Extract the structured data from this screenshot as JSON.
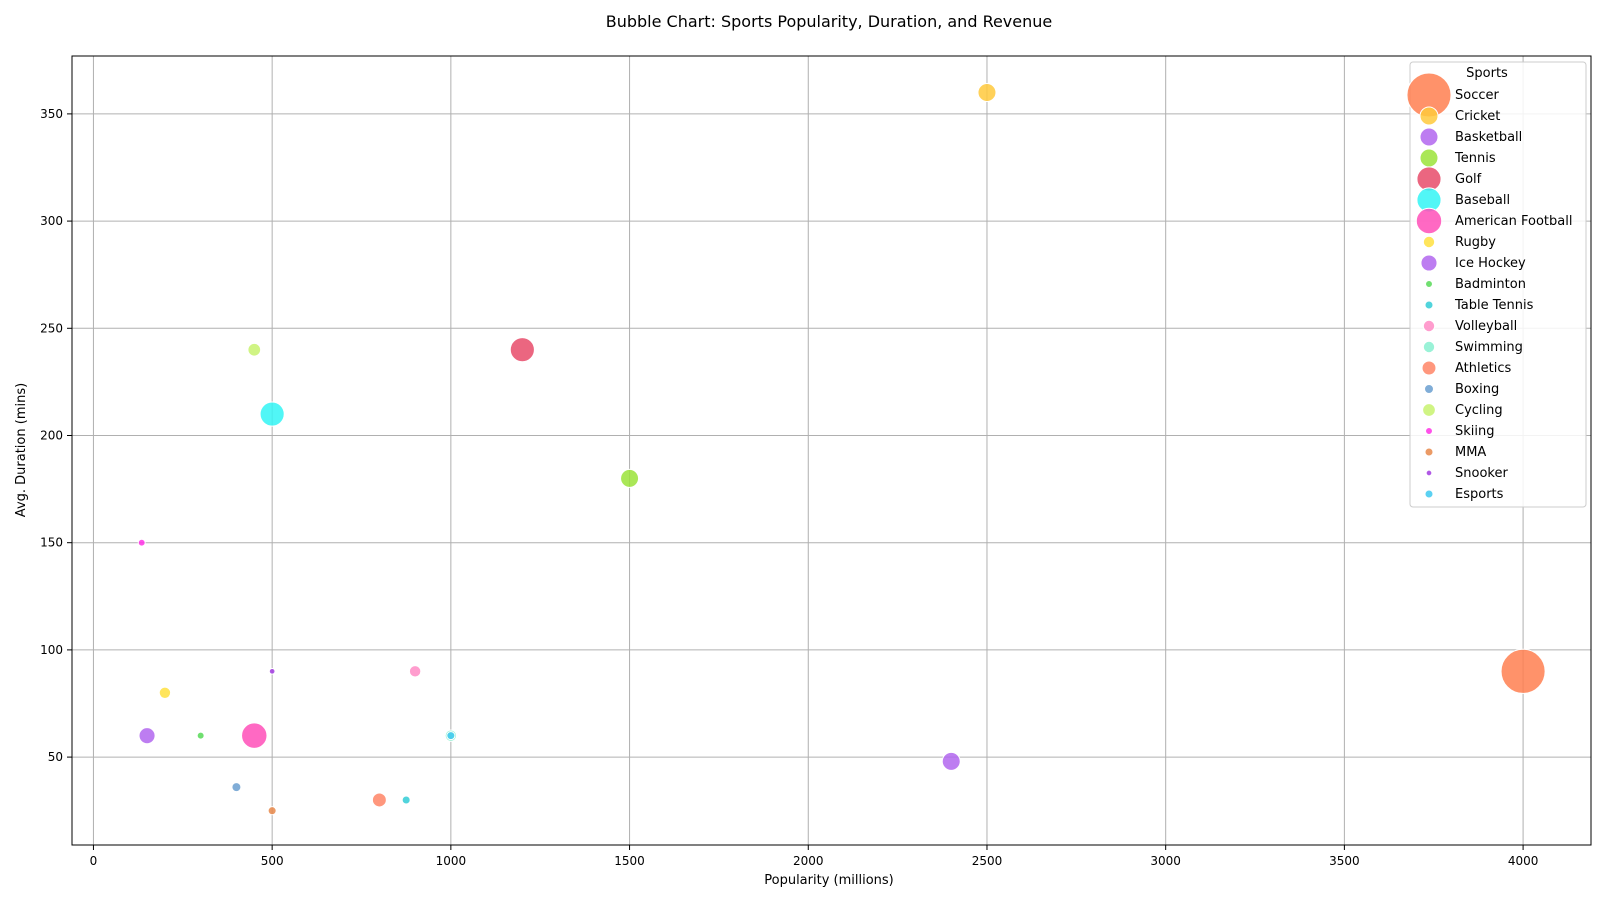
{
  "chart_data": {
    "type": "scatter",
    "title": "Bubble Chart: Sports Popularity, Duration, and Revenue",
    "xlabel": "Popularity (millions)",
    "ylabel": "Avg. Duration (mins)",
    "xlim": [
      -60,
      4190
    ],
    "ylim": [
      9,
      377
    ],
    "xticks": [
      0,
      500,
      1000,
      1500,
      2000,
      2500,
      3000,
      3500,
      4000
    ],
    "yticks": [
      50,
      100,
      150,
      200,
      250,
      300,
      350
    ],
    "grid": true,
    "legend": {
      "title": "Sports",
      "placement": "top-right"
    },
    "series": [
      {
        "name": "Soccer",
        "x": 4000,
        "y": 90,
        "size": 600,
        "color": "#ff7f50"
      },
      {
        "name": "Cricket",
        "x": 2500,
        "y": 360,
        "size": 100,
        "color": "#ffc93c"
      },
      {
        "name": "Basketball",
        "x": 2400,
        "y": 48,
        "size": 100,
        "color": "#b266ee"
      },
      {
        "name": "Tennis",
        "x": 1500,
        "y": 180,
        "size": 100,
        "color": "#9be33a"
      },
      {
        "name": "Golf",
        "x": 1200,
        "y": 240,
        "size": 180,
        "color": "#e84b6a"
      },
      {
        "name": "Baseball",
        "x": 500,
        "y": 210,
        "size": 180,
        "color": "#33f5f5"
      },
      {
        "name": "American Football",
        "x": 450,
        "y": 60,
        "size": 200,
        "color": "#ff4fb8"
      },
      {
        "name": "Rugby",
        "x": 200,
        "y": 80,
        "size": 40,
        "color": "#ffe040"
      },
      {
        "name": "Ice Hockey",
        "x": 150,
        "y": 60,
        "size": 80,
        "color": "#b266ee"
      },
      {
        "name": "Badminton",
        "x": 300,
        "y": 60,
        "size": 15,
        "color": "#57d957"
      },
      {
        "name": "Table Tennis",
        "x": 875,
        "y": 30,
        "size": 20,
        "color": "#33ccd6"
      },
      {
        "name": "Volleyball",
        "x": 900,
        "y": 90,
        "size": 40,
        "color": "#ff8cc6"
      },
      {
        "name": "Swimming",
        "x": 1000,
        "y": 60,
        "size": 40,
        "color": "#88f0d0"
      },
      {
        "name": "Athletics",
        "x": 800,
        "y": 30,
        "size": 60,
        "color": "#ff8566"
      },
      {
        "name": "Boxing",
        "x": 400,
        "y": 36,
        "size": 25,
        "color": "#6a9fd0"
      },
      {
        "name": "Cycling",
        "x": 450,
        "y": 240,
        "size": 50,
        "color": "#c8f26e"
      },
      {
        "name": "Skiing",
        "x": 135,
        "y": 150,
        "size": 15,
        "color": "#ff33e6"
      },
      {
        "name": "MMA",
        "x": 500,
        "y": 25,
        "size": 20,
        "color": "#e8884a"
      },
      {
        "name": "Snooker",
        "x": 500,
        "y": 90,
        "size": 10,
        "color": "#a23be0"
      },
      {
        "name": "Esports",
        "x": 1000,
        "y": 60,
        "size": 20,
        "color": "#3ec9f0"
      }
    ]
  }
}
